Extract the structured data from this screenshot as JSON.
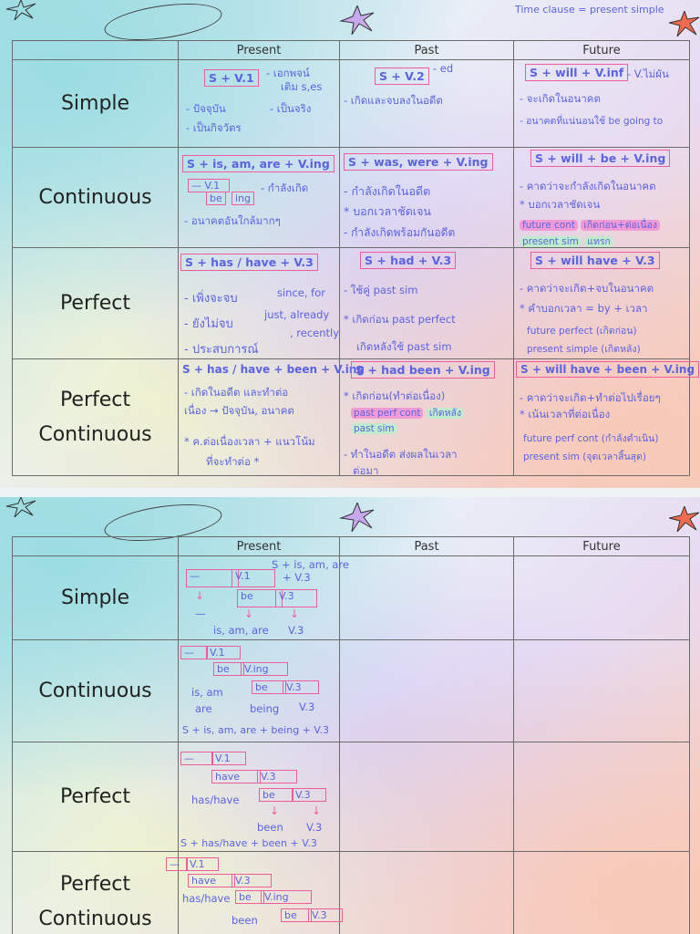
{
  "columns": [
    "Present",
    "Past",
    "Future"
  ],
  "rows": [
    "Simple",
    "Continuous",
    "Perfect",
    "Perfect",
    "Continuous"
  ],
  "note": "Time clause = present simple",
  "p1": {
    "simple": {
      "present": {
        "formula": "S + V.1",
        "n1": "- เอกพจน์",
        "n2": "เติม s,es",
        "n3": "- ปัจจุบัน",
        "n4": "- เป็นจริง",
        "n5": "- เป็นกิจวัตร"
      },
      "past": {
        "formula": "S + V.2",
        "sup": "- ed",
        "n1": "- เกิดและจบลงในอดีต"
      },
      "future": {
        "formula": "S + will + V.inf",
        "n0": "- V.ไม่ผัน",
        "n1": "- จะเกิดในอนาคต",
        "n2": "- อนาคตที่แน่นอนใช้ be going to"
      }
    },
    "continuous": {
      "present": {
        "formula": "S + is, am, are + V.ing",
        "b1": "V.1",
        "b2": "be",
        "b3": "ing",
        "n1": "- กำลังเกิด",
        "n2": "- อนาคตอันใกล้มากๆ"
      },
      "past": {
        "formula": "S + was, were + V.ing",
        "n1": "- กำลังเกิดในอดีต",
        "n2": "* บอกเวลาชัดเจน",
        "n3": "- กำลังเกิดพร้อมกันอดีต"
      },
      "future": {
        "formula": "S + will + be + V.ing",
        "n1": "- คาดว่าจะกำลังเกิดในอนาคต",
        "n2": "* บอกเวลาชัดเจน",
        "n3": "future cont",
        "n4": "เกิดก่อน+ต่อเนื่อง",
        "n5": "present sim",
        "n6": "แทรก"
      }
    },
    "perfect": {
      "present": {
        "formula": "S + has / have + V.3",
        "n1": "- เพิ่งจะจบ",
        "n1b": "since, for",
        "n2": "- ยังไม่จบ",
        "n2b": "just, already",
        "n3": "- ประสบการณ์",
        "n3b": ", recently"
      },
      "past": {
        "formula": "S + had + V.3",
        "n1": "- ใช้คู่ past sim",
        "n2": "* เกิดก่อน past perfect",
        "n3": "เกิดหลังใช้ past sim"
      },
      "future": {
        "formula": "S + will have + V.3",
        "n1": "- คาดว่าจะเกิด+จบในอนาคต",
        "n2": "* คำบอกเวลา = by + เวลา",
        "n3": "future perfect (เกิดก่อน)",
        "n4": "present simple (เกิดหลัง)"
      }
    },
    "perfcont": {
      "present": {
        "formula": "S + has / have + been + V.ing",
        "n1": "- เกิดในอดีต และทำต่อ",
        "n2": "เนื่อง → ปัจจุบัน, อนาคต",
        "n3": "* ค.ต่อเนื่องเวลา + แนวโน้ม",
        "n4": "ที่จะทำต่อ *"
      },
      "past": {
        "formula": "S + had been + V.ing",
        "n1": "* เกิดก่อน(ทำต่อเนื่อง)",
        "n2": "past perf cont",
        "n3": "เกิดหลัง",
        "n4": "past sim",
        "n5": "- ทำในอดีต ส่งผลในเวลา",
        "n6": "ต่อมา"
      },
      "future": {
        "formula": "S + will have + been + V.ing",
        "n1": "- คาดว่าจะเกิด+ทำต่อไปเรื่อยๆ",
        "n2": "* เน้นเวลาที่ต่อเนื่อง",
        "n3": "future perf cont (กำลังดำเนิน)",
        "n4": "present sim (จุดเวลาสิ้นสุด)"
      }
    }
  },
  "p2": {
    "simple": {
      "top": "S + is, am, are",
      "top2": "+ V.3",
      "dash": "—",
      "v1": "V.1",
      "be": "be",
      "v3": "V.3",
      "dash2": "—",
      "bottom": "is, am, are",
      "v3b": "V.3"
    },
    "continuous": {
      "dash": "—",
      "v1": "V.1",
      "be": "be",
      "ving": "V.ing",
      "be2": "be",
      "v3": "V.3",
      "l1": "is, am",
      "l2": "are",
      "l3": "being",
      "l4": "V.3",
      "formula": "S + is, am, are + being + V.3"
    },
    "perfect": {
      "dash": "—",
      "v1": "V.1",
      "have": "have",
      "v3": "V.3",
      "be": "be",
      "v3b": "V.3",
      "l1": "has/have",
      "l2": "been",
      "l3": "V.3",
      "formula": "S + has/have + been + V.3"
    },
    "perfcont": {
      "dash": "—",
      "v1": "V.1",
      "have": "have",
      "v3": "V.3",
      "l1": "has/have",
      "be": "be",
      "ving": "V.ing",
      "l2": "been",
      "be2": "be",
      "v3b": "V.3"
    }
  }
}
